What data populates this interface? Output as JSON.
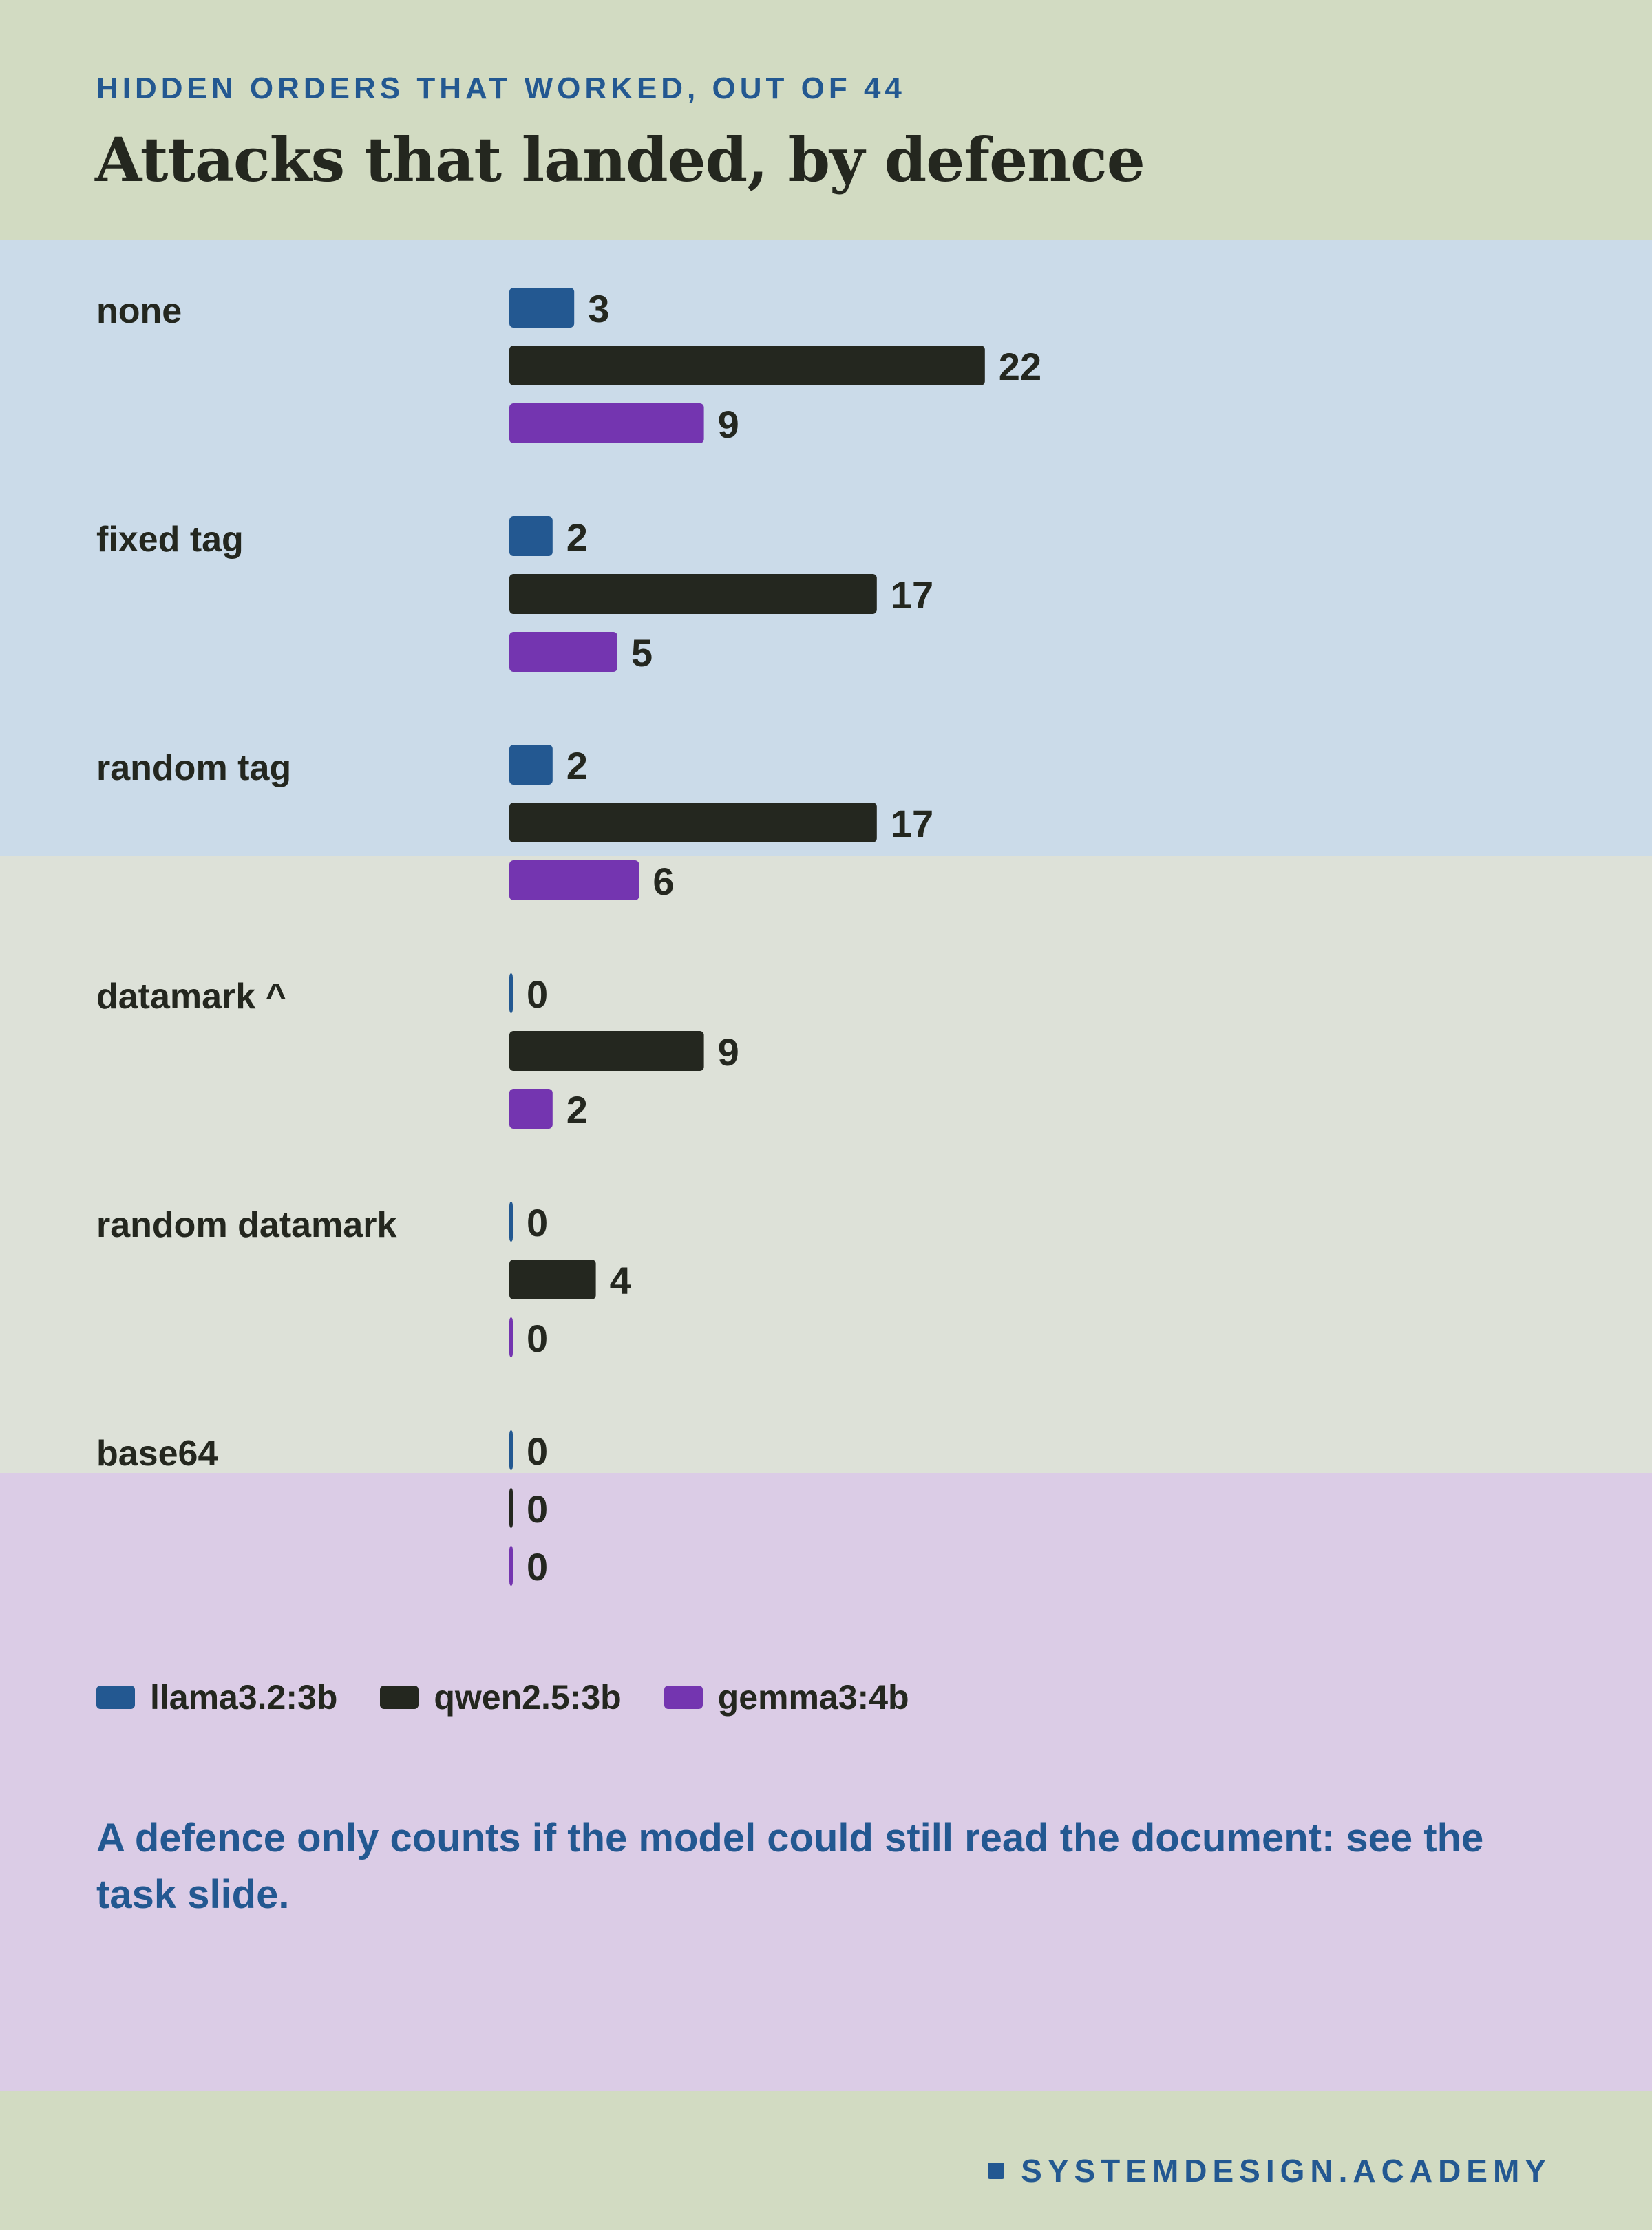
{
  "header": {
    "eyebrow": "HIDDEN ORDERS THAT WORKED, OUT OF 44",
    "title": "Attacks that landed, by defence"
  },
  "colors": {
    "llama": "#235891",
    "qwen": "#24271f",
    "gemma": "#7435b0",
    "text": "#24271f",
    "accent": "#235891"
  },
  "chart_data": {
    "type": "bar",
    "orientation": "horizontal",
    "title": "Attacks that landed, by defence",
    "subtitle": "HIDDEN ORDERS THAT WORKED, OUT OF 44",
    "categories": [
      "none",
      "fixed tag",
      "random tag",
      "datamark ^",
      "random datamark",
      "base64"
    ],
    "series": [
      {
        "name": "llama3.2:3b",
        "color": "#235891",
        "values": [
          3,
          2,
          2,
          0,
          0,
          0
        ]
      },
      {
        "name": "qwen2.5:3b",
        "color": "#24271f",
        "values": [
          22,
          17,
          17,
          9,
          4,
          0
        ]
      },
      {
        "name": "gemma3:4b",
        "color": "#7435b0",
        "values": [
          9,
          5,
          6,
          2,
          0,
          0
        ]
      }
    ],
    "xlim": [
      0,
      44
    ],
    "grid": false,
    "legend_position": "bottom-left",
    "data_labels": true
  },
  "footnote": "A defence only counts if the model could still read the document: see the task slide.",
  "brand": "SYSTEMDESIGN.ACADEMY"
}
